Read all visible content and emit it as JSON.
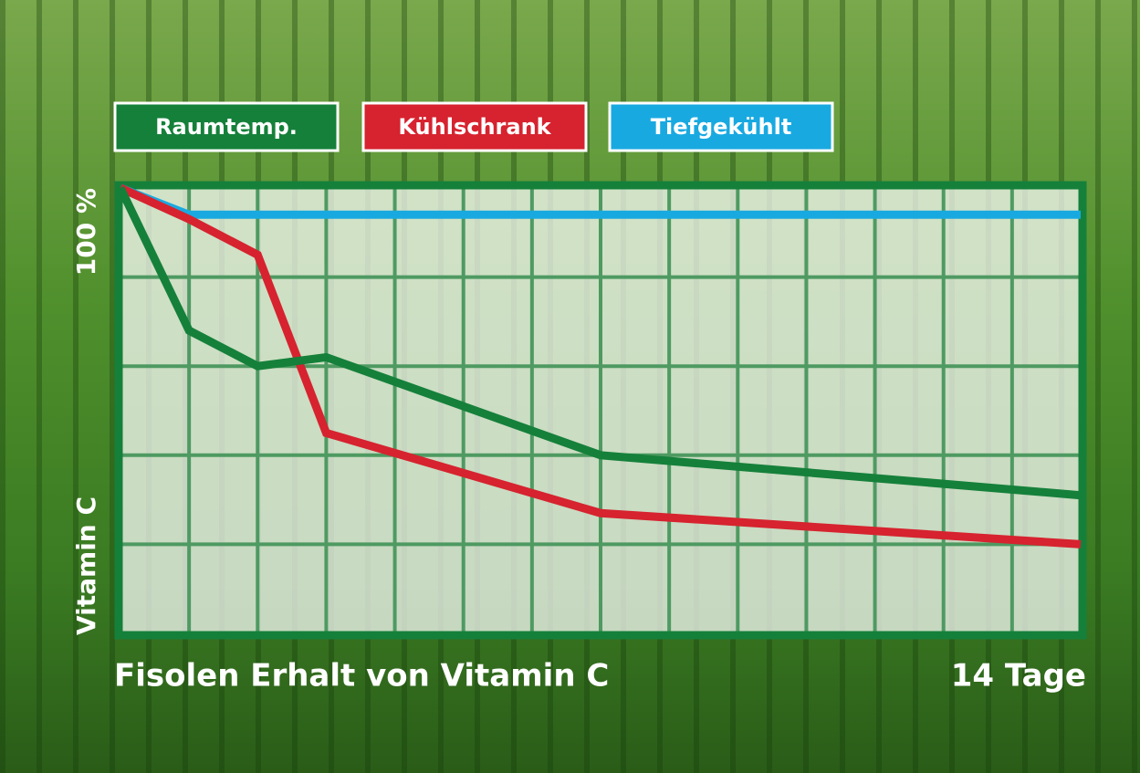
{
  "chart_data": {
    "type": "line",
    "title": "Fisolen Erhalt von Vitamin C",
    "y_label": "Vitamin C",
    "x": [
      0,
      1,
      2,
      3,
      7,
      14
    ],
    "series": [
      {
        "name": "Raumtemp.",
        "color": "#15803a",
        "values": [
          100,
          68,
          60,
          62,
          40,
          31
        ]
      },
      {
        "name": "Kühlschrank",
        "color": "#d6232f",
        "values": [
          100,
          93,
          85,
          45,
          27,
          20
        ]
      },
      {
        "name": "Tiefgekühlt",
        "color": "#19a9e1",
        "values": [
          100,
          94,
          94,
          94,
          94,
          94
        ]
      }
    ],
    "xlim": [
      0,
      14
    ],
    "ylim": [
      0,
      100
    ],
    "xticks": [
      {
        "value": 14,
        "label": "14 Tage"
      }
    ],
    "yticks": [
      {
        "value": 100,
        "label": "100 %"
      }
    ],
    "x_gridlines": [
      1,
      2,
      3,
      4,
      5,
      6,
      7,
      8,
      9,
      10,
      11,
      12,
      13
    ],
    "y_gridlines": [
      20,
      40,
      60,
      80
    ],
    "grid": true
  }
}
